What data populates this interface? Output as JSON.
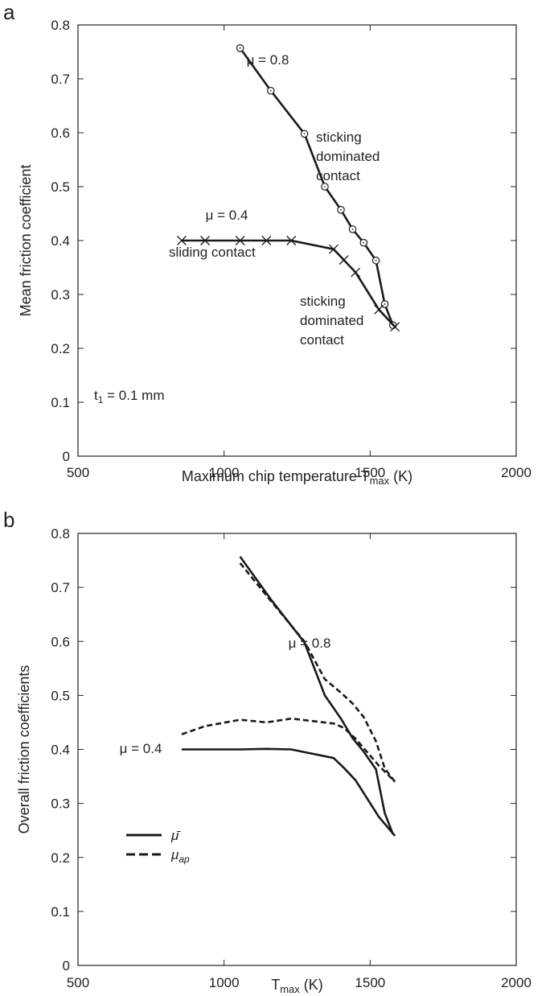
{
  "chart_data": [
    {
      "panel": "a",
      "type": "line",
      "xlabel": "Maximum chip temperature T",
      "xlabel_sub": "max",
      "xlabel_unit": " (K)",
      "ylabel": "Mean friction coefficient",
      "xlim": [
        500,
        2000
      ],
      "ylim": [
        0,
        0.8
      ],
      "xticks": [
        "500",
        "1000",
        "1500",
        "2000"
      ],
      "yticks": [
        "0",
        "0.1",
        "0.2",
        "0.3",
        "0.4",
        "0.5",
        "0.6",
        "0.7",
        "0.8"
      ],
      "grid": false,
      "series": [
        {
          "marker": "circle",
          "x": [
            1055,
            1160,
            1275,
            1345,
            1400,
            1440,
            1478,
            1520,
            1550,
            1578
          ],
          "y": [
            0.757,
            0.678,
            0.598,
            0.5,
            0.457,
            0.421,
            0.396,
            0.363,
            0.282,
            0.243
          ]
        },
        {
          "marker": "x",
          "x": [
            855,
            935,
            1055,
            1145,
            1230,
            1375,
            1410,
            1450,
            1530,
            1585
          ],
          "y": [
            0.4,
            0.4,
            0.4,
            0.4,
            0.4,
            0.384,
            0.364,
            0.341,
            0.272,
            0.24
          ]
        }
      ],
      "annotations": [
        {
          "text": "μ = 0.8"
        },
        {
          "text": "μ = 0.4"
        },
        {
          "text": "sticking"
        },
        {
          "text": "dominated"
        },
        {
          "text": "contact"
        },
        {
          "text": "sliding contact"
        },
        {
          "text": "sticking"
        },
        {
          "text": "dominated"
        },
        {
          "text": "contact"
        },
        {
          "text": "t",
          "sub": "1",
          "rest": " = 0.1 mm"
        }
      ]
    },
    {
      "panel": "b",
      "type": "line",
      "xlabel": "T",
      "xlabel_sub": "max",
      "xlabel_unit": " (K)",
      "ylabel": "Overall friction coefficients",
      "xlim": [
        500,
        2000
      ],
      "ylim": [
        0,
        0.8
      ],
      "xticks": [
        "500",
        "1000",
        "1500",
        "2000"
      ],
      "yticks": [
        "0",
        "0.1",
        "0.2",
        "0.3",
        "0.4",
        "0.5",
        "0.6",
        "0.7",
        "0.8"
      ],
      "grid": false,
      "legend": {
        "placement": "bottom-left",
        "entries": [
          {
            "label": "μ̄",
            "style": "solid"
          },
          {
            "label": "μ",
            "sub": "ap",
            "style": "dashed"
          }
        ]
      },
      "series": [
        {
          "style": "solid",
          "x": [
            1055,
            1160,
            1275,
            1345,
            1400,
            1440,
            1478,
            1520,
            1550,
            1578
          ],
          "y": [
            0.757,
            0.678,
            0.598,
            0.5,
            0.457,
            0.421,
            0.396,
            0.363,
            0.282,
            0.243
          ]
        },
        {
          "style": "dashed",
          "x": [
            1055,
            1160,
            1275,
            1345,
            1400,
            1440,
            1478,
            1520,
            1550,
            1585
          ],
          "y": [
            0.745,
            0.675,
            0.6,
            0.53,
            0.505,
            0.485,
            0.46,
            0.415,
            0.365,
            0.34
          ]
        },
        {
          "style": "solid",
          "x": [
            855,
            935,
            1055,
            1145,
            1230,
            1375,
            1410,
            1450,
            1530,
            1585
          ],
          "y": [
            0.4,
            0.4,
            0.4,
            0.401,
            0.4,
            0.384,
            0.366,
            0.343,
            0.275,
            0.24
          ]
        },
        {
          "style": "dashed",
          "x": [
            855,
            935,
            1055,
            1145,
            1230,
            1375,
            1410,
            1450,
            1530,
            1585
          ],
          "y": [
            0.428,
            0.443,
            0.455,
            0.45,
            0.457,
            0.448,
            0.44,
            0.42,
            0.37,
            0.34
          ]
        }
      ],
      "annotations": [
        {
          "text": "μ = 0.8"
        },
        {
          "text": "μ = 0.4"
        }
      ]
    }
  ]
}
